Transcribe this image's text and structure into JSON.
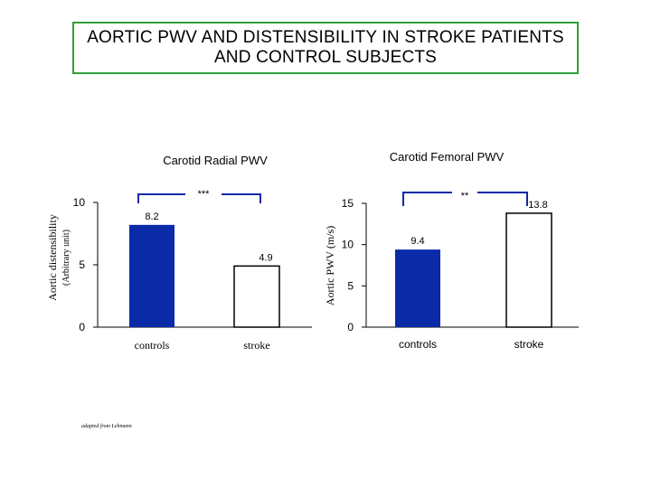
{
  "title": "AORTIC PWV AND DISTENSIBILITY IN STROKE PATIENTS AND CONTROL SUBJECTS",
  "source_note": "adapted from Lehmann",
  "colors": {
    "controls_bar": "#0a2aa8",
    "stroke_bar": "#ffffff",
    "title_border": "#2e9e3a"
  },
  "chart_data": [
    {
      "type": "bar",
      "title": "Carotid Radial PWV",
      "ylabel_line1": "Aortic distensibility",
      "ylabel_line2": "(Arbitrary unit)",
      "ylim": [
        0,
        10
      ],
      "yticks": [
        "0",
        "5",
        "10"
      ],
      "categories": [
        "controls",
        "stroke"
      ],
      "values": [
        8.2,
        4.9
      ],
      "value_labels": [
        "8.2",
        "4.9"
      ],
      "significance": "***"
    },
    {
      "type": "bar",
      "title": "Carotid Femoral PWV",
      "ylabel": "Aortic PWV (m/s)",
      "ylim": [
        0,
        15
      ],
      "yticks": [
        "0",
        "5",
        "10",
        "15"
      ],
      "categories": [
        "controls",
        "stroke"
      ],
      "values": [
        9.4,
        13.8
      ],
      "value_labels": [
        "9.4",
        "13.8"
      ],
      "significance": "**"
    }
  ]
}
